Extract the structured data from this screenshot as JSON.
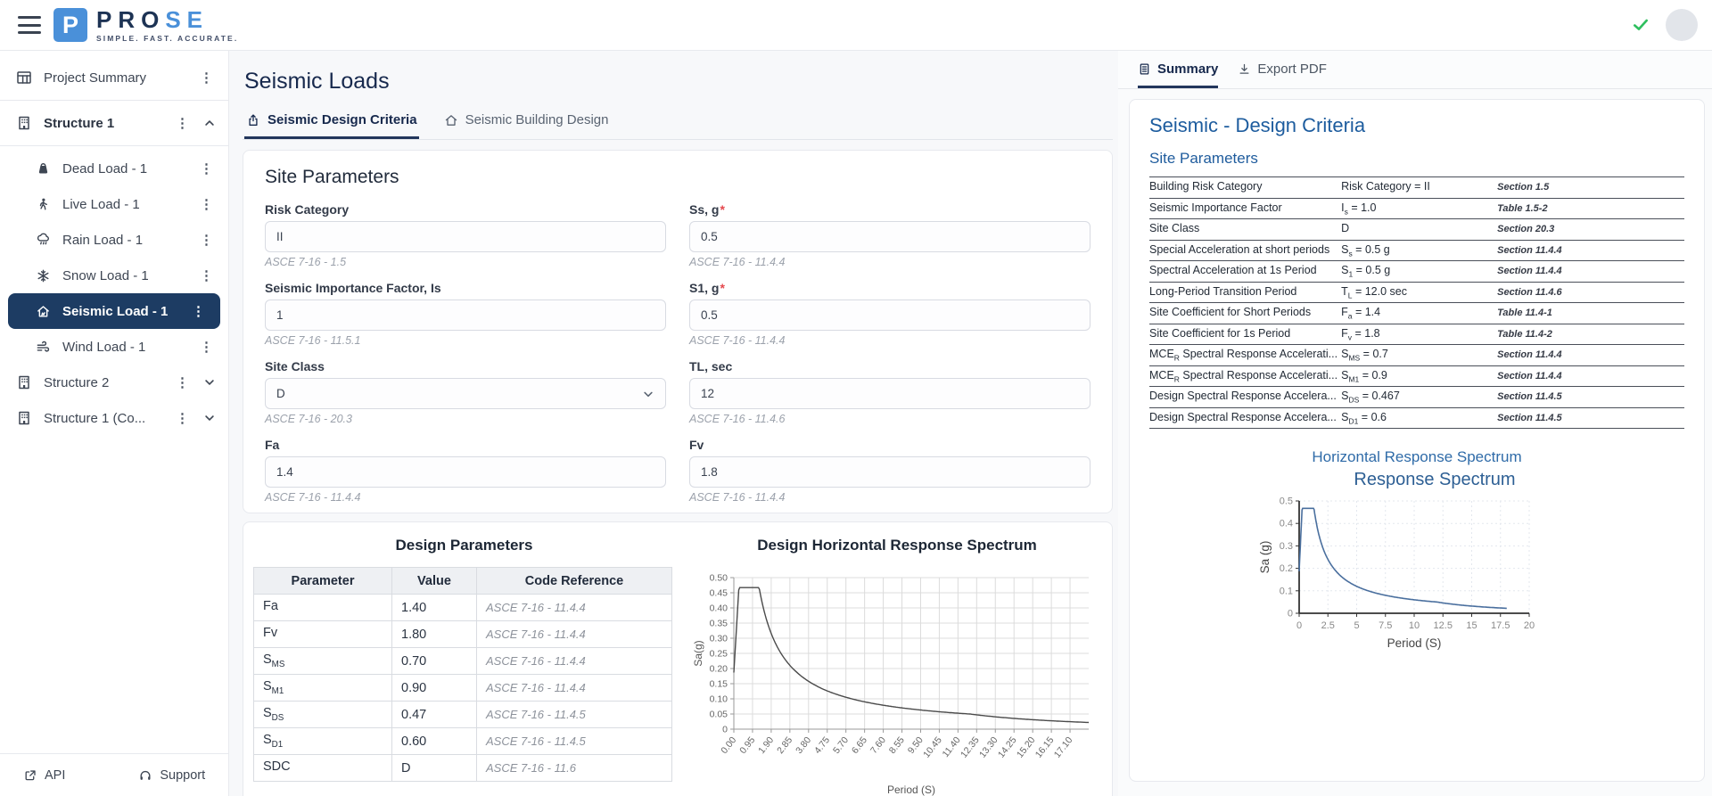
{
  "topbar": {
    "logo_letter": "P",
    "logo_word_dark": "PRO",
    "logo_word_blue": "SE",
    "tagline": "SIMPLE. FAST. ACCURATE."
  },
  "colors": {
    "brand_blue": "#4a90d9",
    "navy": "#17294d",
    "selected_item_bg": "#1d3c63",
    "heading_blue": "#1d5c9e",
    "success_green": "#2fbf5f",
    "main_chart_line": "#4a4a4a",
    "summary_chart_line": "#4a6f9e"
  },
  "sidebar": {
    "project_summary": {
      "label": "Project Summary"
    },
    "structure1": {
      "label": "Structure 1",
      "loads": [
        {
          "label": "Dead Load - 1"
        },
        {
          "label": "Live Load - 1"
        },
        {
          "label": "Rain Load - 1"
        },
        {
          "label": "Snow Load - 1"
        },
        {
          "label": "Seismic Load - 1",
          "selected": true
        },
        {
          "label": "Wind Load - 1"
        }
      ]
    },
    "structure2": {
      "label": "Structure 2"
    },
    "structure1_copy": {
      "label": "Structure 1 (Co..."
    },
    "api_label": "API",
    "support_label": "Support"
  },
  "main": {
    "title": "Seismic Loads",
    "tabs": [
      {
        "label": "Seismic Design Criteria",
        "active": true
      },
      {
        "label": "Seismic Building Design",
        "active": false
      }
    ],
    "site_parameters": {
      "heading": "Site Parameters",
      "fields": [
        {
          "label": "Risk Category",
          "required_mark": "",
          "value": "II",
          "ref": "ASCE 7-16 - 1.5",
          "control": "input"
        },
        {
          "label": "Ss, g",
          "required_mark": "*",
          "value": "0.5",
          "ref": "ASCE 7-16 - 11.4.4",
          "control": "input"
        },
        {
          "label": "Seismic Importance Factor, Is",
          "required_mark": "",
          "value": "1",
          "ref": "ASCE 7-16 - 11.5.1",
          "control": "input"
        },
        {
          "label": "S1, g",
          "required_mark": "*",
          "value": "0.5",
          "ref": "ASCE 7-16 - 11.4.4",
          "control": "input"
        },
        {
          "label": "Site Class",
          "required_mark": "",
          "value": "D",
          "ref": "ASCE 7-16 - 20.3",
          "control": "select"
        },
        {
          "label": "TL, sec",
          "required_mark": "",
          "value": "12",
          "ref": "ASCE 7-16 - 11.4.6",
          "control": "input"
        },
        {
          "label": "Fa",
          "required_mark": "",
          "value": "1.4",
          "ref": "ASCE 7-16 - 11.4.4",
          "control": "input"
        },
        {
          "label": "Fv",
          "required_mark": "",
          "value": "1.8",
          "ref": "ASCE 7-16 - 11.4.4",
          "control": "input"
        }
      ]
    },
    "design_parameters": {
      "title": "Design Parameters",
      "columns": [
        "Parameter",
        "Value",
        "Code Reference"
      ],
      "rows": [
        {
          "p": "Fa",
          "sub": "",
          "v": "1.40",
          "ref": "ASCE 7-16 - 11.4.4"
        },
        {
          "p": "Fv",
          "sub": "",
          "v": "1.80",
          "ref": "ASCE 7-16 - 11.4.4"
        },
        {
          "p": "S",
          "sub": "MS",
          "v": "0.70",
          "ref": "ASCE 7-16 - 11.4.4"
        },
        {
          "p": "S",
          "sub": "M1",
          "v": "0.90",
          "ref": "ASCE 7-16 - 11.4.4"
        },
        {
          "p": "S",
          "sub": "DS",
          "v": "0.47",
          "ref": "ASCE 7-16 - 11.4.5"
        },
        {
          "p": "S",
          "sub": "D1",
          "v": "0.60",
          "ref": "ASCE 7-16 - 11.4.5"
        },
        {
          "p": "SDC",
          "sub": "",
          "v": "D",
          "ref": "ASCE 7-16 - 11.6"
        }
      ]
    }
  },
  "summary_panel": {
    "tab_summary": "Summary",
    "export_pdf": "Export PDF",
    "heading": "Seismic - Design Criteria",
    "subheading": "Site Parameters",
    "rows": [
      {
        "name": "Building Risk Category",
        "name_sub": "",
        "name_rest": "",
        "value_pre": "Risk Category = II",
        "value_sub": "",
        "value_post": "",
        "ref": "Section 1.5"
      },
      {
        "name": "Seismic Importance Factor",
        "name_sub": "",
        "name_rest": "",
        "value_pre": "I",
        "value_sub": "s",
        "value_post": " = 1.0",
        "ref": "Table 1.5-2"
      },
      {
        "name": "Site Class",
        "name_sub": "",
        "name_rest": "",
        "value_pre": "D",
        "value_sub": "",
        "value_post": "",
        "ref": "Section 20.3"
      },
      {
        "name": "Special Acceleration at short periods",
        "name_sub": "",
        "name_rest": "",
        "value_pre": "S",
        "value_sub": "s",
        "value_post": " = 0.5 g",
        "ref": "Section 11.4.4"
      },
      {
        "name": "Spectral Acceleration at 1s Period",
        "name_sub": "",
        "name_rest": "",
        "value_pre": "S",
        "value_sub": "1",
        "value_post": " = 0.5 g",
        "ref": "Section 11.4.4"
      },
      {
        "name": "Long-Period Transition Period",
        "name_sub": "",
        "name_rest": "",
        "value_pre": "T",
        "value_sub": "L",
        "value_post": " = 12.0 sec",
        "ref": "Section 11.4.6"
      },
      {
        "name": "Site Coefficient for Short Periods",
        "name_sub": "",
        "name_rest": "",
        "value_pre": "F",
        "value_sub": "a",
        "value_post": " = 1.4",
        "ref": "Table 11.4-1"
      },
      {
        "name": "Site Coefficient for 1s Period",
        "name_sub": "",
        "name_rest": "",
        "value_pre": "F",
        "value_sub": "v",
        "value_post": " = 1.8",
        "ref": "Table 11.4-2"
      },
      {
        "name": "MCE",
        "name_sub": "R",
        "name_rest": " Spectral Response Accelerati...",
        "value_pre": "S",
        "value_sub": "MS",
        "value_post": " = 0.7",
        "ref": "Section 11.4.4"
      },
      {
        "name": "MCE",
        "name_sub": "R",
        "name_rest": " Spectral Response Accelerati...",
        "value_pre": "S",
        "value_sub": "M1",
        "value_post": " = 0.9",
        "ref": "Section 11.4.4"
      },
      {
        "name": "Design Spectral Response Accelera...",
        "name_sub": "",
        "name_rest": "",
        "value_pre": "S",
        "value_sub": "DS",
        "value_post": " = 0.467",
        "ref": "Section 11.4.5"
      },
      {
        "name": "Design Spectral Response Accelera...",
        "name_sub": "",
        "name_rest": "",
        "value_pre": "S",
        "value_sub": "D1",
        "value_post": " = 0.6",
        "ref": "Section 11.4.5"
      }
    ]
  },
  "chart_data": [
    {
      "type": "line",
      "title": "Design Horizontal Response Spectrum",
      "xlabel": "Period (S)",
      "ylabel": "Sa(g)",
      "xlim": [
        0,
        18.05
      ],
      "ylim": [
        0,
        0.5
      ],
      "x_ticks": [
        {
          "v": 0,
          "label": "0.00"
        },
        {
          "v": 0.95,
          "label": "0.95"
        },
        {
          "v": 1.9,
          "label": "1.90"
        },
        {
          "v": 2.85,
          "label": "2.85"
        },
        {
          "v": 3.8,
          "label": "3.80"
        },
        {
          "v": 4.75,
          "label": "4.75"
        },
        {
          "v": 5.7,
          "label": "5.70"
        },
        {
          "v": 6.65,
          "label": "6.65"
        },
        {
          "v": 7.6,
          "label": "7.60"
        },
        {
          "v": 8.55,
          "label": "8.55"
        },
        {
          "v": 9.5,
          "label": "9.50"
        },
        {
          "v": 10.45,
          "label": "10.45"
        },
        {
          "v": 11.4,
          "label": "11.40"
        },
        {
          "v": 12.35,
          "label": "12.35"
        },
        {
          "v": 13.3,
          "label": "13.30"
        },
        {
          "v": 14.25,
          "label": "14.25"
        },
        {
          "v": 15.2,
          "label": "15.20"
        },
        {
          "v": 16.15,
          "label": "16.15"
        },
        {
          "v": 17.1,
          "label": "17.10"
        }
      ],
      "y_ticks": [
        {
          "v": 0,
          "label": "0"
        },
        {
          "v": 0.05,
          "label": "0.05"
        },
        {
          "v": 0.1,
          "label": "0.10"
        },
        {
          "v": 0.15,
          "label": "0.15"
        },
        {
          "v": 0.2,
          "label": "0.20"
        },
        {
          "v": 0.25,
          "label": "0.25"
        },
        {
          "v": 0.3,
          "label": "0.30"
        },
        {
          "v": 0.35,
          "label": "0.35"
        },
        {
          "v": 0.4,
          "label": "0.40"
        },
        {
          "v": 0.45,
          "label": "0.45"
        },
        {
          "v": 0.5,
          "label": "0.50"
        }
      ],
      "spectrum": {
        "sds": 0.467,
        "sd1": 0.6,
        "t0": 0.257,
        "ts": 1.285,
        "tl": 12,
        "tmax": 18.05
      },
      "line_color": "#4a4a4a",
      "grid": "solid",
      "legend": false
    },
    {
      "type": "line",
      "panel_heading": "Horizontal Response Spectrum",
      "title": "Response Spectrum",
      "xlabel": "Period (S)",
      "ylabel": "Sa (g)",
      "xlim": [
        0,
        20
      ],
      "ylim": [
        0,
        0.5
      ],
      "x_ticks": [
        {
          "v": 0,
          "label": "0"
        },
        {
          "v": 2.5,
          "label": "2.5"
        },
        {
          "v": 5,
          "label": "5"
        },
        {
          "v": 7.5,
          "label": "7.5"
        },
        {
          "v": 10,
          "label": "10"
        },
        {
          "v": 12.5,
          "label": "12.5"
        },
        {
          "v": 15,
          "label": "15"
        },
        {
          "v": 17.5,
          "label": "17.5"
        },
        {
          "v": 20,
          "label": "20"
        }
      ],
      "y_ticks": [
        {
          "v": 0,
          "label": "0"
        },
        {
          "v": 0.1,
          "label": "0.1"
        },
        {
          "v": 0.2,
          "label": "0.2"
        },
        {
          "v": 0.3,
          "label": "0.3"
        },
        {
          "v": 0.4,
          "label": "0.4"
        },
        {
          "v": 0.5,
          "label": "0.5"
        }
      ],
      "spectrum": {
        "sds": 0.467,
        "sd1": 0.6,
        "t0": 0.257,
        "ts": 1.285,
        "tl": 12,
        "tmax": 18.05
      },
      "line_color": "#4a6f9e",
      "grid": "dashed",
      "legend": false
    }
  ]
}
